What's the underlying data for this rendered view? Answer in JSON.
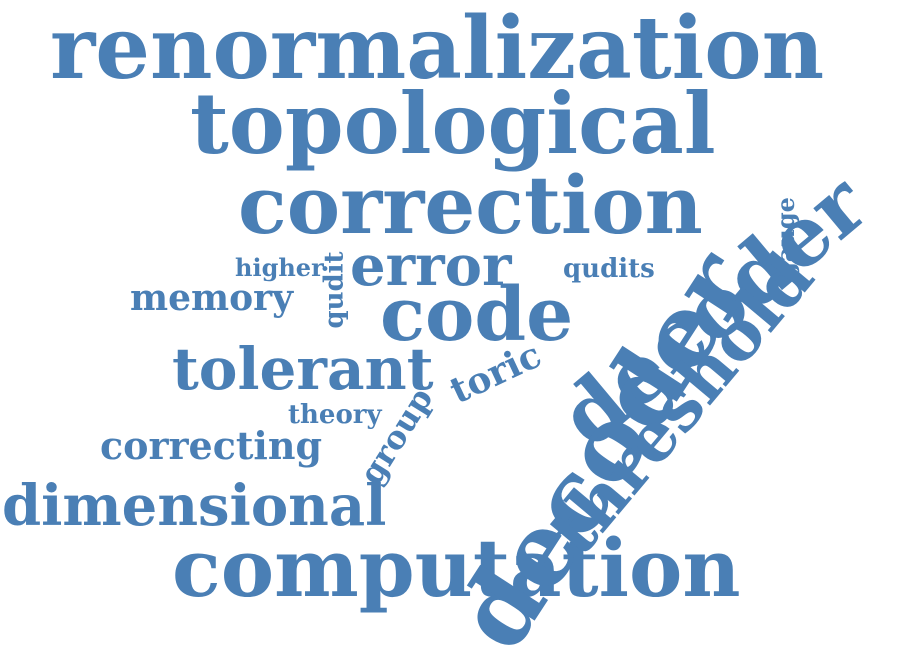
{
  "word_color": "#4a7fb5",
  "words": {
    "renormalization": "renormalization",
    "topological": "topological",
    "correction": "correction",
    "error": "error",
    "code": "code",
    "decoder_diag": "decoder",
    "decoder_big": "decoder",
    "threshold": "threshold",
    "computation": "computation",
    "dimensional": "dimensional",
    "tolerant": "tolerant",
    "memory": "memory",
    "correcting": "correcting",
    "theory": "theory",
    "group": "group",
    "toric": "toric",
    "qudits": "qudits",
    "qudit": "qudit",
    "higher": "higher",
    "gauge": "gauge"
  }
}
